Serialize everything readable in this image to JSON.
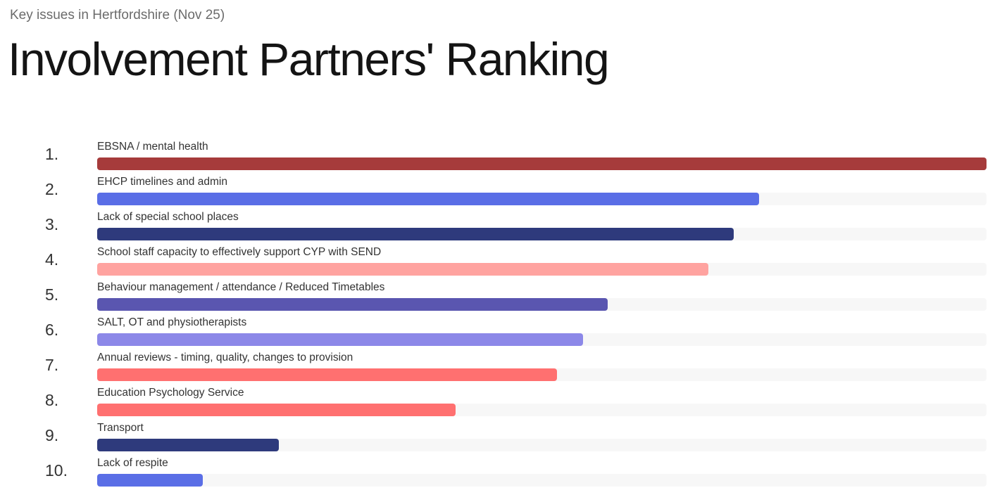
{
  "header": {
    "subtitle": "Key issues in Hertfordshire (Nov 25)",
    "title": "Involvement Partners' Ranking"
  },
  "chart_data": {
    "type": "bar",
    "orientation": "horizontal",
    "title": "Involvement Partners' Ranking",
    "subtitle": "Key issues in Hertfordshire (Nov 25)",
    "xlim": [
      0,
      1
    ],
    "items": [
      {
        "rank": "1.",
        "label": "EBSNA / mental health",
        "value": 1.0,
        "color": "#a63b3b"
      },
      {
        "rank": "2.",
        "label": "EHCP timelines and admin",
        "value": 0.744,
        "color": "#5a6ee6"
      },
      {
        "rank": "3.",
        "label": "Lack of special school places",
        "value": 0.716,
        "color": "#2e3a7c"
      },
      {
        "rank": "4.",
        "label": "School staff capacity to effectively support CYP with SEND",
        "value": 0.687,
        "color": "#ffa3a0"
      },
      {
        "rank": "5.",
        "label": "Behaviour management / attendance / Reduced Timetables",
        "value": 0.574,
        "color": "#5a56b0"
      },
      {
        "rank": "6.",
        "label": "SALT, OT and physiotherapists",
        "value": 0.546,
        "color": "#8c88e8"
      },
      {
        "rank": "7.",
        "label": "Annual reviews - timing, quality, changes to provision",
        "value": 0.517,
        "color": "#ff7070"
      },
      {
        "rank": "8.",
        "label": "Education Psychology Service",
        "value": 0.403,
        "color": "#ff7070"
      },
      {
        "rank": "9.",
        "label": "Transport",
        "value": 0.204,
        "color": "#2e3a7c"
      },
      {
        "rank": "10.",
        "label": "Lack of respite",
        "value": 0.119,
        "color": "#5a6ee6"
      }
    ]
  }
}
